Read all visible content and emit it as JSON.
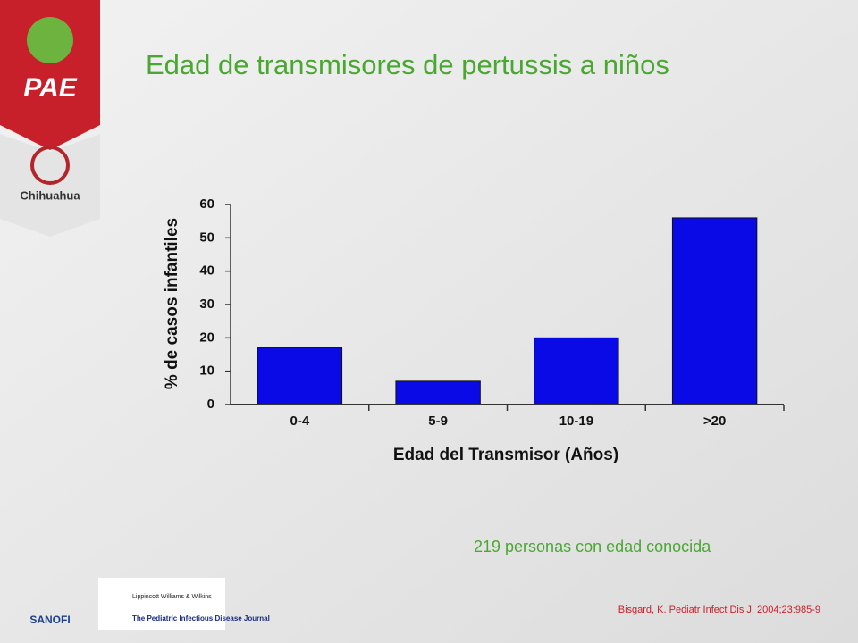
{
  "slide": {
    "logo_main": "PAE",
    "logo_state": "Chihuahua",
    "logo_sponsor": "SANOFI",
    "journal": "The Pediatric Infectious Disease Journal",
    "publisher": "Lippincott Williams & Wilkins"
  },
  "chart_data": {
    "type": "bar",
    "title": "Edad de transmisores de pertussis a niños",
    "x_label": "Edad del Transmisor (Años)",
    "y_label": "% de casos infantiles",
    "categories": [
      "0-4",
      "5-9",
      "10-19",
      ">20"
    ],
    "values": [
      17,
      7,
      20,
      56
    ],
    "color": "#0a0ae6",
    "ylim": [
      0,
      60
    ],
    "yticks": [
      0,
      10,
      20,
      30,
      40,
      50,
      60
    ],
    "grid": false,
    "annotation": "219 personas con edad conocida",
    "source": "Bisgard, K. Pediatr Infect Dis J. 2004;23:985-9"
  }
}
